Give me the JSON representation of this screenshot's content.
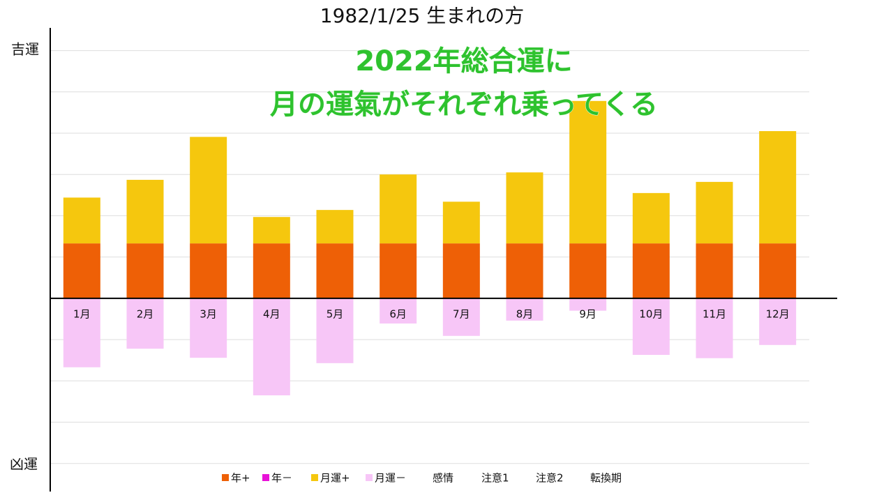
{
  "chart_data": {
    "type": "bar",
    "stacked": true,
    "title": "1982/1/25 生まれの方",
    "annotation": [
      "2022年総合運に",
      "月の運氣がそれぞれ乗ってくる"
    ],
    "y_top_label": "吉運",
    "y_bottom_label": "凶運",
    "categories": [
      "1月",
      "2月",
      "3月",
      "4月",
      "5月",
      "6月",
      "7月",
      "8月",
      "9月",
      "10月",
      "11月",
      "12月"
    ],
    "series": [
      {
        "name": "年+",
        "color": "#ee6006",
        "values": [
          1.33,
          1.33,
          1.33,
          1.33,
          1.33,
          1.33,
          1.33,
          1.33,
          1.33,
          1.33,
          1.33,
          1.33
        ]
      },
      {
        "name": "年－",
        "color": "#e812d8",
        "values": [
          null,
          null,
          null,
          null,
          null,
          null,
          null,
          null,
          null,
          null,
          null,
          null
        ]
      },
      {
        "name": "月運+",
        "color": "#f5c70e",
        "values": [
          1.11,
          1.54,
          2.58,
          0.64,
          0.81,
          1.67,
          1.01,
          1.72,
          3.45,
          1.22,
          1.49,
          2.72
        ]
      },
      {
        "name": "月運－",
        "color": "#f7c6f7",
        "values": [
          -1.67,
          -1.22,
          -1.44,
          -2.35,
          -1.57,
          -0.61,
          -0.91,
          -0.54,
          -0.3,
          -1.37,
          -1.45,
          -1.13
        ]
      },
      {
        "name": "感情",
        "values": [
          null,
          null,
          null,
          null,
          null,
          null,
          null,
          null,
          null,
          null,
          null,
          null
        ]
      },
      {
        "name": "注意1",
        "values": [
          null,
          null,
          null,
          null,
          null,
          null,
          null,
          null,
          null,
          null,
          null,
          null
        ]
      },
      {
        "name": "注意2",
        "values": [
          null,
          null,
          null,
          null,
          null,
          null,
          null,
          null,
          null,
          null,
          null,
          null
        ]
      },
      {
        "name": "転換期",
        "values": [
          null,
          null,
          null,
          null,
          null,
          null,
          null,
          null,
          null,
          null,
          null,
          null
        ]
      }
    ],
    "ylim": [
      -4.68,
      6.55
    ],
    "yticks": [
      -4,
      -3,
      -2,
      -1,
      0,
      1,
      2,
      3,
      4,
      5,
      6
    ],
    "grid": true
  }
}
